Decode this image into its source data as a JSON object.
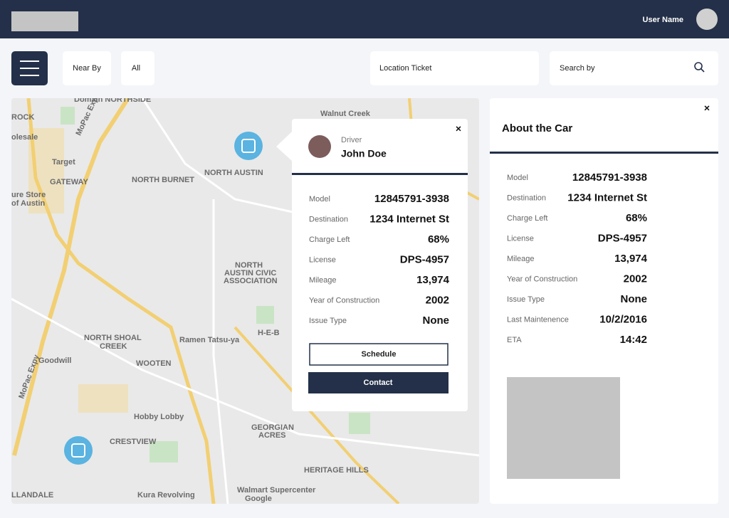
{
  "header": {
    "user_name": "User Name"
  },
  "toolbar": {
    "near_by": "Near By",
    "all": "All",
    "location_ticket": "Location Ticket",
    "search": "Search by"
  },
  "map": {
    "labels": [
      "Domain NORTHSIDE",
      "ROCK",
      "olesale",
      "Target",
      "GATEWAY",
      "NORTH BURNET",
      "NORTH AUSTIN",
      "Walnut Creek",
      "ure Store",
      "of Austin",
      "NORTH",
      "AUSTIN CIVIC",
      "ASSOCIATION",
      "NORTH SHOAL",
      "CREEK",
      "Ramen Tatsu-ya",
      "H-E-B",
      "Goodwill",
      "WOOTEN",
      "Hobby Lobby",
      "CRESTVIEW",
      "GEORGIAN",
      "ACRES",
      "HERITAGE HILLS",
      "Walmart Supercenter",
      "Kura Revolving",
      "LLANDALE",
      "MoPac Expy",
      "MoPac Expy",
      "Google"
    ]
  },
  "popup": {
    "close": "×",
    "driver_label": "Driver",
    "driver_name": "John Doe",
    "fields": [
      {
        "label": "Model",
        "value": "12845791-3938"
      },
      {
        "label": "Destination",
        "value": "1234 Internet St"
      },
      {
        "label": "Charge Left",
        "value": "68%"
      },
      {
        "label": "License",
        "value": "DPS-4957"
      },
      {
        "label": "Mileage",
        "value": "13,974"
      },
      {
        "label": "Year of Construction",
        "value": "2002"
      },
      {
        "label": "Issue Type",
        "value": "None"
      }
    ],
    "schedule": "Schedule",
    "contact": "Contact"
  },
  "panel": {
    "title": "About the Car",
    "close": "×",
    "fields": [
      {
        "label": "Model",
        "value": "12845791-3938"
      },
      {
        "label": "Destination",
        "value": "1234 Internet St"
      },
      {
        "label": "Charge Left",
        "value": "68%"
      },
      {
        "label": "License",
        "value": "DPS-4957"
      },
      {
        "label": "Mileage",
        "value": "13,974"
      },
      {
        "label": "Year of Construction",
        "value": "2002"
      },
      {
        "label": "Issue Type",
        "value": "None"
      },
      {
        "label": "Last Maintenence",
        "value": "10/2/2016"
      },
      {
        "label": "ETA",
        "value": "14:42"
      }
    ]
  }
}
